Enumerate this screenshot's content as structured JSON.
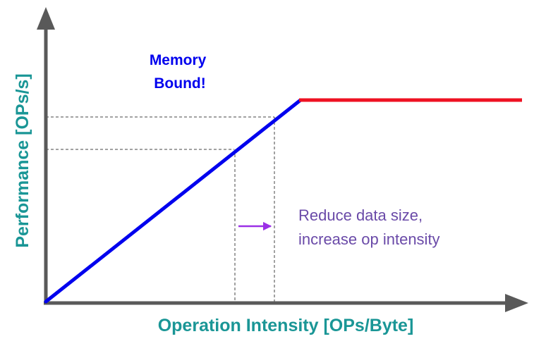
{
  "labels": {
    "y_axis": "Performance [OPs/s]",
    "x_axis": "Operation Intensity [OPs/Byte]",
    "region_label_line1": "Memory",
    "region_label_line2": "Bound!",
    "annotation_line1": "Reduce data size,",
    "annotation_line2": "increase op intensity"
  },
  "colors": {
    "axis": "#595959",
    "axis_title": "#1a9696",
    "memory_slope": "#0000ee",
    "compute_roof": "#ee1122",
    "region_label": "#0000ee",
    "guide_lines": "#444444",
    "shift_arrow": "#9b30e6",
    "annotation": "#6a4aa8"
  },
  "chart_data": {
    "type": "line",
    "xlabel": "Operation Intensity [OPs/Byte]",
    "ylabel": "Performance [OPs/s]",
    "series": [
      {
        "segment": "memory-bound slope",
        "color": "#0000ee"
      },
      {
        "segment": "compute-bound roof",
        "color": "#ee1122"
      }
    ],
    "annotations": [
      "Memory Bound!",
      "Reduce data size, increase op intensity"
    ]
  }
}
